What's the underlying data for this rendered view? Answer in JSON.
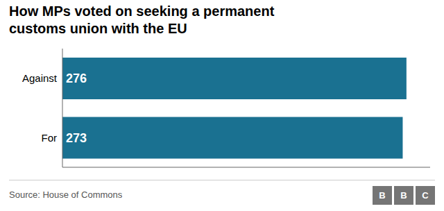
{
  "chart_data": {
    "type": "bar",
    "title": "How MPs voted on seeking a permanent\ncustoms union with the EU",
    "categories": [
      "For",
      "Against"
    ],
    "values": [
      273,
      276
    ],
    "color": "#1a7191",
    "orientation": "horizontal",
    "xlim": [
      0,
      295
    ],
    "grid": false,
    "data_labels": true,
    "tick_labels": "y",
    "annotations": [
      "Source: House of Commons",
      "BBC"
    ]
  }
}
